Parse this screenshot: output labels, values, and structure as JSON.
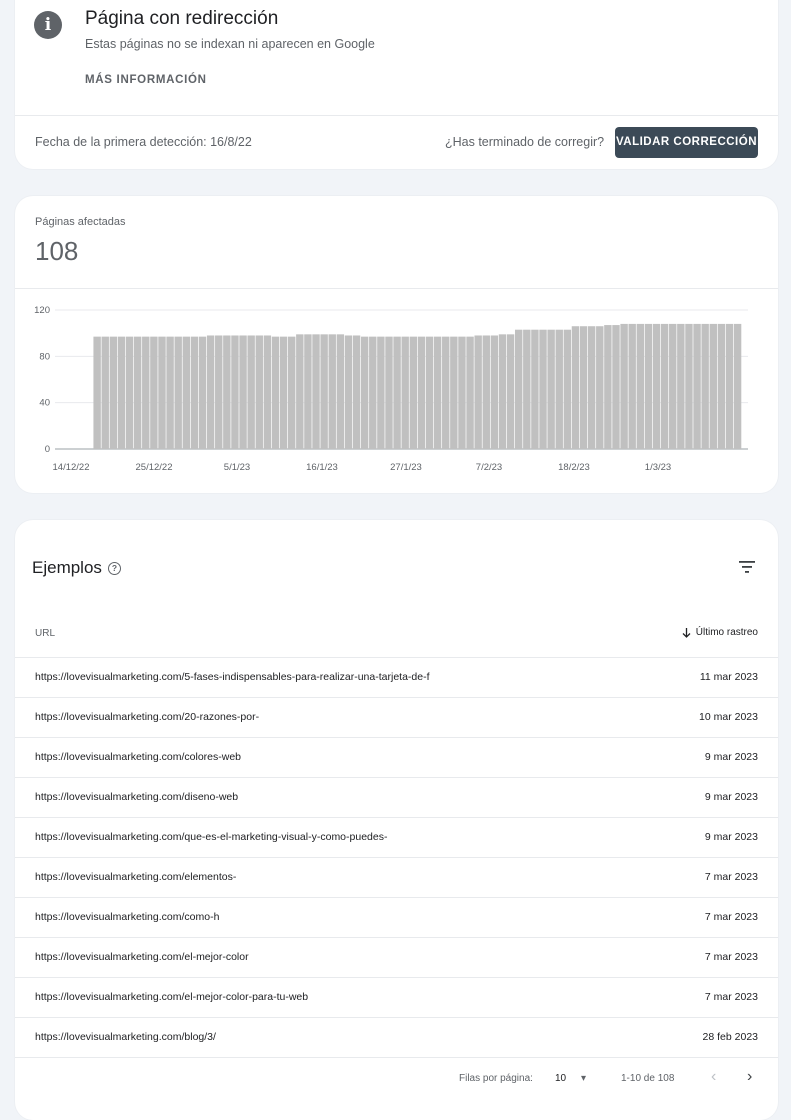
{
  "issue": {
    "title": "Página con redirección",
    "subtitle": "Estas páginas no se indexan ni aparecen en Google",
    "more_info": "MÁS INFORMACIÓN",
    "first_detection": "Fecha de la primera detección: 16/8/22",
    "done_question": "¿Has terminado de corregir?",
    "validate_button": "VALIDAR CORRECCIÓN",
    "info_icon": "info-icon"
  },
  "affected": {
    "label": "Páginas afectadas",
    "count": "108"
  },
  "chart_data": {
    "type": "bar",
    "bar_color": "#c0c0c0",
    "grid": true,
    "ylim": [
      0,
      120
    ],
    "y_ticks": [
      0,
      40,
      80,
      120
    ],
    "x_tick_labels": [
      "14/12/22",
      "25/12/22",
      "5/1/23",
      "16/1/23",
      "27/1/23",
      "7/2/23",
      "18/2/23",
      "1/3/23"
    ],
    "values": [
      0,
      0,
      0,
      0,
      97,
      97,
      97,
      97,
      97,
      97,
      97,
      97,
      97,
      97,
      97,
      97,
      97,
      97,
      98,
      98,
      98,
      98,
      98,
      98,
      98,
      98,
      97,
      97,
      97,
      99,
      99,
      99,
      99,
      99,
      99,
      98,
      98,
      97,
      97,
      97,
      97,
      97,
      97,
      97,
      97,
      97,
      97,
      97,
      97,
      97,
      97,
      98,
      98,
      98,
      99,
      99,
      103,
      103,
      103,
      103,
      103,
      103,
      103,
      106,
      106,
      106,
      106,
      107,
      107,
      108,
      108,
      108,
      108,
      108,
      108,
      108,
      108,
      108,
      108,
      108,
      108,
      108,
      108,
      108
    ]
  },
  "examples": {
    "title": "Ejemplos",
    "help_icon": "help-icon",
    "filter_icon": "filter-icon",
    "col_url": "URL",
    "col_last": "Último rastreo",
    "rows": [
      {
        "url": "https://lovevisualmarketing.com/5-fases-indispensables-para-realizar-una-tarjeta-de-f",
        "date": "11 mar 2023"
      },
      {
        "url": "https://lovevisualmarketing.com/20-razones-por-",
        "date": "10 mar 2023"
      },
      {
        "url": "https://lovevisualmarketing.com/colores-web",
        "date": "9 mar 2023"
      },
      {
        "url": "https://lovevisualmarketing.com/diseno-web",
        "date": "9 mar 2023"
      },
      {
        "url": "https://lovevisualmarketing.com/que-es-el-marketing-visual-y-como-puedes-",
        "date": "9 mar 2023"
      },
      {
        "url": "https://lovevisualmarketing.com/elementos-",
        "date": "7 mar 2023"
      },
      {
        "url": "https://lovevisualmarketing.com/como-h",
        "date": "7 mar 2023"
      },
      {
        "url": "https://lovevisualmarketing.com/el-mejor-color",
        "date": "7 mar 2023"
      },
      {
        "url": "https://lovevisualmarketing.com/el-mejor-color-para-tu-web",
        "date": "7 mar 2023"
      },
      {
        "url": "https://lovevisualmarketing.com/blog/3/",
        "date": "28 feb 2023"
      }
    ]
  },
  "pager": {
    "rows_per_page_label": "Filas por página:",
    "rows_per_page": "10",
    "range": "1-10 de 108"
  }
}
